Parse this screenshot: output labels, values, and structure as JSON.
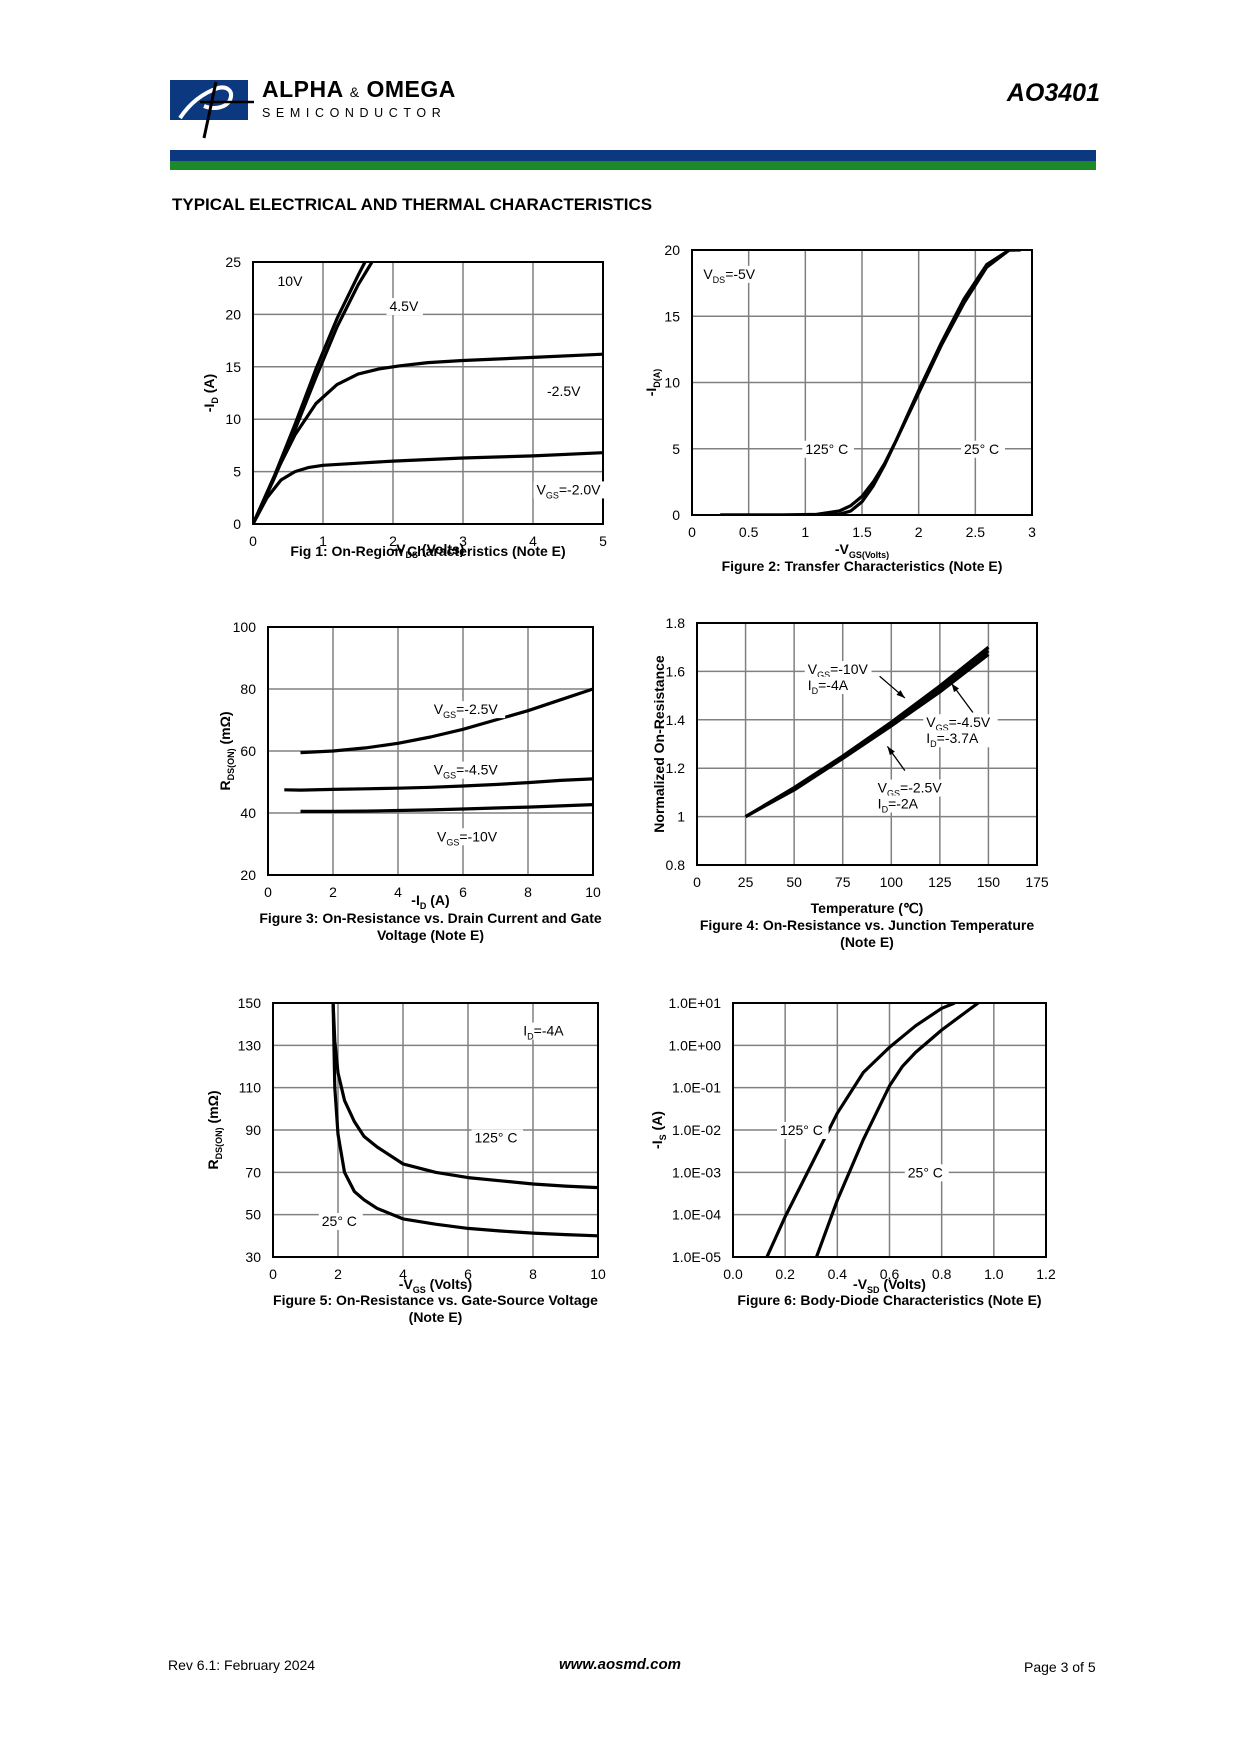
{
  "header": {
    "brand_main": "ALPHA",
    "brand_amp": "&",
    "brand_main2": "OMEGA",
    "brand_sub": "SEMICONDUCTOR",
    "part_number": "AO3401",
    "colors": {
      "blue": "#0c3880",
      "green": "#1d8a2a"
    }
  },
  "section_title": "TYPICAL ELECTRICAL AND THERMAL CHARACTERISTICS",
  "footer": {
    "revision": "Rev 6.1: February 2024",
    "website": "www.aosmd.com",
    "page": "Page 3 of 5"
  },
  "chart_data": [
    {
      "id": "fig1",
      "type": "line",
      "title": "Fig 1: On-Region Characteristics (Note E)",
      "xlabel": "-V_DS (Volts)",
      "ylabel": "-I_D (A)",
      "xlim": [
        0,
        5
      ],
      "ylim": [
        0,
        25
      ],
      "xticks": [
        0,
        1,
        2,
        3,
        4,
        5
      ],
      "yticks": [
        0,
        5,
        10,
        15,
        20,
        25
      ],
      "grid": true,
      "series": [
        {
          "name": "10V",
          "x": [
            0,
            0.3,
            0.6,
            0.9,
            1.2,
            1.5,
            1.6
          ],
          "y": [
            0,
            4.5,
            9.5,
            14.8,
            19.6,
            23.7,
            25
          ]
        },
        {
          "name": "4.5V",
          "x": [
            0,
            0.3,
            0.6,
            0.9,
            1.2,
            1.5,
            1.7
          ],
          "y": [
            0,
            4.3,
            9.0,
            14.0,
            18.8,
            22.8,
            25
          ]
        },
        {
          "name": "-2.5V",
          "x": [
            0,
            0.3,
            0.6,
            0.9,
            1.2,
            1.5,
            1.8,
            2.1,
            2.5,
            3,
            4,
            5
          ],
          "y": [
            0,
            4.5,
            8.5,
            11.5,
            13.3,
            14.3,
            14.8,
            15.1,
            15.4,
            15.6,
            15.9,
            16.2
          ]
        },
        {
          "name": "-2.0V",
          "x": [
            0,
            0.2,
            0.4,
            0.6,
            0.8,
            1,
            1.5,
            2,
            3,
            4,
            5
          ],
          "y": [
            0,
            2.5,
            4.2,
            5.0,
            5.4,
            5.6,
            5.8,
            6.0,
            6.3,
            6.5,
            6.8
          ]
        }
      ],
      "labels": [
        {
          "text": "10V",
          "x": 0.35,
          "y": 23.2
        },
        {
          "text": "4.5V",
          "x": 1.95,
          "y": 20.8
        },
        {
          "text": "-2.5V",
          "x": 4.2,
          "y": 12.7
        },
        {
          "text": "VGS=-2.0V",
          "main": "V",
          "sub": "GS",
          "tail": "=-2.0V",
          "x": 4.05,
          "y": 3.3
        }
      ]
    },
    {
      "id": "fig2",
      "type": "line",
      "title": "Figure 2: Transfer Characteristics (Note E)",
      "xlabel": "-V_GS(Volts)",
      "ylabel": "-I_D(A)",
      "xlim": [
        0,
        3
      ],
      "ylim": [
        0,
        20
      ],
      "xticks": [
        0,
        0.5,
        1,
        1.5,
        2,
        2.5,
        3
      ],
      "xtick_labels": [
        "0",
        "0.5",
        "1",
        "1.5",
        "2",
        "2.5",
        "3"
      ],
      "yticks": [
        0,
        5,
        10,
        15,
        20
      ],
      "grid": true,
      "series": [
        {
          "name": "125° C",
          "x": [
            0.25,
            0.8,
            1.1,
            1.3,
            1.4,
            1.5,
            1.6,
            1.7,
            1.8,
            1.9,
            2.0,
            2.2,
            2.4,
            2.6,
            2.8,
            2.85
          ],
          "y": [
            0,
            0,
            0.05,
            0.3,
            0.7,
            1.4,
            2.5,
            3.9,
            5.6,
            7.4,
            9.2,
            12.8,
            16.0,
            18.7,
            20,
            20
          ]
        },
        {
          "name": "25° C",
          "x": [
            0.25,
            1.0,
            1.3,
            1.4,
            1.5,
            1.6,
            1.7,
            1.8,
            1.9,
            2.0,
            2.2,
            2.4,
            2.6,
            2.8,
            2.9
          ],
          "y": [
            0,
            0,
            0.05,
            0.3,
            1.0,
            2.2,
            3.8,
            5.6,
            7.5,
            9.4,
            13.0,
            16.3,
            18.9,
            20,
            20
          ]
        }
      ],
      "labels": [
        {
          "text": "VDS=-5V",
          "main": "V",
          "sub": "DS",
          "tail": "=-5V",
          "x": 0.1,
          "y": 18.2
        },
        {
          "text": "125° C",
          "x": 1.0,
          "y": 5.0
        },
        {
          "text": "25° C",
          "x": 2.4,
          "y": 5.0
        }
      ]
    },
    {
      "id": "fig3",
      "type": "line",
      "title": "Figure 3: On-Resistance vs. Drain Current and Gate Voltage (Note E)",
      "title_lines": [
        "Figure 3: On-Resistance vs. Drain Current and Gate",
        "Voltage (Note E)"
      ],
      "xlabel": "-I_D (A)",
      "ylabel": "R_DS(ON) (mΩ)",
      "xlim": [
        0,
        10
      ],
      "ylim": [
        20,
        100
      ],
      "xticks": [
        0,
        2,
        4,
        6,
        8,
        10
      ],
      "yticks": [
        20,
        40,
        60,
        80,
        100
      ],
      "grid": true,
      "series": [
        {
          "name": "VGS=-2.5V",
          "x": [
            1,
            2,
            3,
            4,
            5,
            6,
            7,
            8,
            9,
            10
          ],
          "y": [
            59.5,
            60,
            61,
            62.5,
            64.5,
            67,
            70,
            73,
            76.5,
            80
          ]
        },
        {
          "name": "VGS=-4.5V",
          "x": [
            0.5,
            1,
            2,
            3,
            4,
            5,
            6,
            7,
            8,
            9,
            10
          ],
          "y": [
            47.5,
            47.4,
            47.6,
            47.8,
            48.0,
            48.3,
            48.7,
            49.2,
            49.8,
            50.5,
            51.0
          ]
        },
        {
          "name": "VGS=-10V",
          "x": [
            1,
            2,
            3,
            4,
            5,
            6,
            7,
            8,
            9,
            10
          ],
          "y": [
            40.5,
            40.5,
            40.6,
            40.8,
            41.0,
            41.3,
            41.6,
            41.9,
            42.3,
            42.7
          ]
        }
      ],
      "labels": [
        {
          "text": "VGS=-2.5V",
          "main": "V",
          "sub": "GS",
          "tail": "=-2.5V",
          "x": 5.1,
          "y": 73.5
        },
        {
          "text": "VGS=-4.5V",
          "main": "V",
          "sub": "GS",
          "tail": "=-4.5V",
          "x": 5.1,
          "y": 54
        },
        {
          "text": "VGS=-10V",
          "main": "V",
          "sub": "GS",
          "tail": "=-10V",
          "x": 5.2,
          "y": 32.5
        }
      ]
    },
    {
      "id": "fig4",
      "type": "line",
      "title": "Figure 4: On-Resistance vs. Junction Temperature (Note E)",
      "title_lines": [
        "Temperature (℃)",
        "Figure 4: On-Resistance vs. Junction Temperature",
        "(Note E)"
      ],
      "xlabel": "Temperature (℃)",
      "ylabel": "Normalized On-Resistance",
      "xlim": [
        0,
        175
      ],
      "ylim": [
        0.8,
        1.8
      ],
      "xticks": [
        0,
        25,
        50,
        75,
        100,
        125,
        150,
        175
      ],
      "yticks": [
        0.8,
        1,
        1.2,
        1.4,
        1.6,
        1.8
      ],
      "ytick_labels": [
        "0.8",
        "1",
        "1.2",
        "1.4",
        "1.6",
        "1.8"
      ],
      "grid": true,
      "series": [
        {
          "name": "VGS=-10V ID=-4A",
          "x": [
            25,
            50,
            75,
            100,
            125,
            150
          ],
          "y": [
            1.0,
            1.115,
            1.245,
            1.385,
            1.53,
            1.685
          ]
        },
        {
          "name": "VGS=-4.5V ID=-3.7A",
          "x": [
            25,
            50,
            75,
            100,
            125,
            150
          ],
          "y": [
            1.0,
            1.11,
            1.24,
            1.375,
            1.515,
            1.67
          ]
        },
        {
          "name": "VGS=-2.5V ID=-2A",
          "x": [
            25,
            50,
            75,
            100,
            125,
            150
          ],
          "y": [
            1.0,
            1.12,
            1.25,
            1.39,
            1.54,
            1.7
          ]
        }
      ],
      "labels": [
        {
          "lines": [
            {
              "text": "VGS=-10V",
              "main": "V",
              "sub": "GS",
              "tail": "=-10V"
            },
            {
              "text": "ID=-4A",
              "main": "I",
              "sub": "D",
              "tail": "=-4A"
            }
          ],
          "x": 57,
          "y": 1.61
        },
        {
          "lines": [
            {
              "text": "VGS=-4.5V",
              "main": "V",
              "sub": "GS",
              "tail": "=-4.5V"
            },
            {
              "text": "ID=-3.7A",
              "main": "I",
              "sub": "D",
              "tail": "=-3.7A"
            }
          ],
          "x": 118,
          "y": 1.39
        },
        {
          "lines": [
            {
              "text": "VGS=-2.5V",
              "main": "V",
              "sub": "GS",
              "tail": "=-2.5V"
            },
            {
              "text": "ID=-2A",
              "main": "I",
              "sub": "D",
              "tail": "=-2A"
            }
          ],
          "x": 93,
          "y": 1.12
        }
      ],
      "arrows": [
        {
          "from": [
            94,
            1.58
          ],
          "to": [
            107,
            1.49
          ]
        },
        {
          "from": [
            142,
            1.43
          ],
          "to": [
            131,
            1.55
          ]
        },
        {
          "from": [
            107,
            1.19
          ],
          "to": [
            98,
            1.29
          ]
        }
      ]
    },
    {
      "id": "fig5",
      "type": "line",
      "title": "Figure 5: On-Resistance vs. Gate-Source Voltage (Note E)",
      "title_lines": [
        "Figure 5: On-Resistance vs. Gate-Source Voltage",
        "(Note E)"
      ],
      "xlabel": "-V_GS (Volts)",
      "ylabel": "R_DS(ON) (mΩ)",
      "xlim": [
        0,
        10
      ],
      "ylim": [
        30,
        150
      ],
      "xticks": [
        0,
        2,
        4,
        6,
        8,
        10
      ],
      "yticks": [
        30,
        50,
        70,
        90,
        110,
        130,
        150
      ],
      "grid": true,
      "series": [
        {
          "name": "125° C",
          "x": [
            1.85,
            1.9,
            2.0,
            2.2,
            2.5,
            2.8,
            3.2,
            4,
            5,
            6,
            7,
            8,
            9,
            10
          ],
          "y": [
            150,
            132,
            117,
            104,
            94,
            87,
            82,
            74,
            70,
            67.5,
            66,
            64.5,
            63.5,
            62.8
          ]
        },
        {
          "name": "25° C",
          "x": [
            1.85,
            1.9,
            2.0,
            2.2,
            2.5,
            2.8,
            3.2,
            4,
            5,
            6,
            7,
            8,
            9,
            10
          ],
          "y": [
            150,
            110,
            88,
            70,
            61,
            57,
            53,
            48,
            45.5,
            43.5,
            42.3,
            41.3,
            40.6,
            40
          ]
        }
      ],
      "labels": [
        {
          "text": "ID=-4A",
          "main": "I",
          "sub": "D",
          "tail": "=-4A",
          "x": 7.7,
          "y": 137
        },
        {
          "text": "125° C",
          "x": 6.2,
          "y": 86.5
        },
        {
          "text": "25° C",
          "x": 1.5,
          "y": 47
        }
      ]
    },
    {
      "id": "fig6",
      "type": "line",
      "title": "Figure 6: Body-Diode Characteristics (Note E)",
      "xlabel": "-V_SD (Volts)",
      "ylabel": "-I_S (A)",
      "xscale": "linear",
      "yscale": "log",
      "xlim": [
        0,
        1.2
      ],
      "ylim": [
        1e-05,
        10
      ],
      "xticks": [
        0,
        0.2,
        0.4,
        0.6,
        0.8,
        1.0,
        1.2
      ],
      "xtick_labels": [
        "0.0",
        "0.2",
        "0.4",
        "0.6",
        "0.8",
        "1.0",
        "1.2"
      ],
      "yticks": [
        1e-05,
        0.0001,
        0.001,
        0.01,
        0.1,
        1,
        10
      ],
      "ytick_labels": [
        "1.0E-05",
        "1.0E-04",
        "1.0E-03",
        "1.0E-02",
        "1.0E-01",
        "1.0E+00",
        "1.0E+01"
      ],
      "grid": true,
      "series": [
        {
          "name": "125° C",
          "x": [
            0.13,
            0.2,
            0.3,
            0.4,
            0.5,
            0.6,
            0.7,
            0.8,
            0.85
          ],
          "y": [
            1e-05,
            9e-05,
            0.0015,
            0.025,
            0.23,
            0.9,
            2.9,
            7.5,
            10
          ]
        },
        {
          "name": "25° C",
          "x": [
            0.32,
            0.4,
            0.5,
            0.6,
            0.65,
            0.7,
            0.8,
            0.9,
            0.94
          ],
          "y": [
            1e-05,
            0.00022,
            0.006,
            0.11,
            0.32,
            0.68,
            2.3,
            6.6,
            10
          ]
        }
      ],
      "labels": [
        {
          "text": "125° C",
          "x": 0.18,
          "y": 0.01
        },
        {
          "text": "25° C",
          "x": 0.67,
          "y": 0.001
        }
      ]
    }
  ]
}
